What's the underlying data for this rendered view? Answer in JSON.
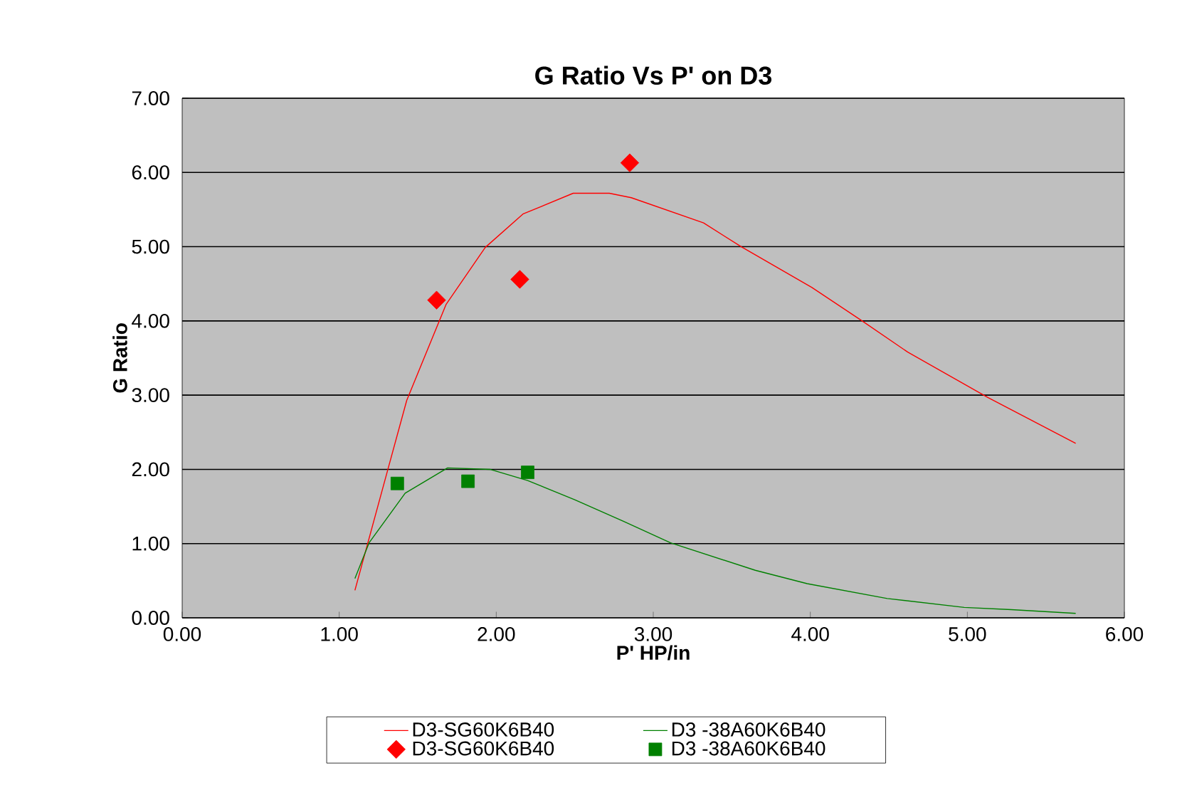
{
  "chart_data": {
    "type": "line",
    "title": "G Ratio Vs P' on D3",
    "xlabel": "P' HP/in",
    "ylabel": "G Ratio",
    "xlim": [
      0,
      6
    ],
    "ylim": [
      0,
      7
    ],
    "xticks": [
      {
        "value": 0,
        "label": "0.00"
      },
      {
        "value": 1,
        "label": "1.00"
      },
      {
        "value": 2,
        "label": "2.00"
      },
      {
        "value": 3,
        "label": "3.00"
      },
      {
        "value": 4,
        "label": "4.00"
      },
      {
        "value": 5,
        "label": "5.00"
      },
      {
        "value": 6,
        "label": "6.00"
      }
    ],
    "yticks": [
      {
        "value": 0,
        "label": "0.00"
      },
      {
        "value": 1,
        "label": "1.00"
      },
      {
        "value": 2,
        "label": "2.00"
      },
      {
        "value": 3,
        "label": "3.00"
      },
      {
        "value": 4,
        "label": "4.00"
      },
      {
        "value": 5,
        "label": "5.00"
      },
      {
        "value": 6,
        "label": "6.00"
      },
      {
        "value": 7,
        "label": "7.00"
      }
    ],
    "grid": "y",
    "legend": "bottom",
    "series": [
      {
        "name": "D3-SG60K6B40",
        "type": "line",
        "color": "#ff0000",
        "marker": "none",
        "x": [
          1.1,
          1.31,
          1.43,
          1.68,
          1.93,
          2.17,
          2.49,
          2.72,
          2.86,
          3.32,
          3.56,
          4.01,
          4.33,
          4.62,
          5.13,
          5.69
        ],
        "values": [
          0.37,
          2.0,
          2.93,
          4.22,
          4.99,
          5.44,
          5.72,
          5.72,
          5.66,
          5.32,
          5.0,
          4.45,
          4.0,
          3.58,
          2.97,
          2.35
        ]
      },
      {
        "name": "D3 -38A60K6B40",
        "type": "line",
        "color": "#008000",
        "marker": "none",
        "x": [
          1.1,
          1.19,
          1.42,
          1.69,
          1.96,
          2.2,
          2.5,
          2.81,
          3.11,
          3.65,
          3.98,
          4.49,
          4.98,
          5.28,
          5.69
        ],
        "values": [
          0.53,
          1.01,
          1.68,
          2.02,
          2.0,
          1.85,
          1.59,
          1.3,
          1.01,
          0.64,
          0.46,
          0.26,
          0.14,
          0.11,
          0.06
        ]
      },
      {
        "name": "D3-SG60K6B40",
        "type": "scatter",
        "color": "#ff0000",
        "marker": "diamond",
        "x": [
          1.62,
          2.15,
          2.85
        ],
        "values": [
          4.28,
          4.56,
          6.13
        ]
      },
      {
        "name": "D3 -38A60K6B40",
        "type": "scatter",
        "color": "#008000",
        "marker": "square",
        "x": [
          1.37,
          1.82,
          2.2
        ],
        "values": [
          1.81,
          1.84,
          1.96
        ]
      }
    ]
  }
}
